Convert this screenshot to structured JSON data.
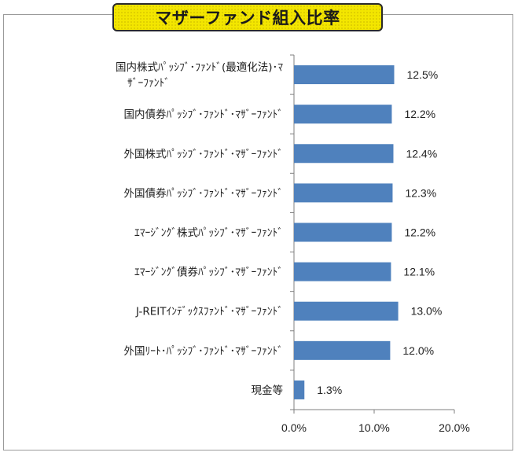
{
  "chart_data": {
    "type": "bar",
    "orientation": "horizontal",
    "title": "マザーファンド組入比率",
    "categories": [
      [
        "国内株式ﾊﾟｯｼﾌﾞ･ﾌｧﾝﾄﾞ(最適化法)･ﾏ",
        "ｻﾞｰﾌｧﾝﾄﾞ"
      ],
      [
        "国内債券ﾊﾟｯｼﾌﾞ･ﾌｧﾝﾄﾞ･ﾏｻﾞｰﾌｧﾝﾄﾞ"
      ],
      [
        "外国株式ﾊﾟｯｼﾌﾞ･ﾌｧﾝﾄﾞ･ﾏｻﾞｰﾌｧﾝﾄﾞ"
      ],
      [
        "外国債券ﾊﾟｯｼﾌﾞ･ﾌｧﾝﾄﾞ･ﾏｻﾞｰﾌｧﾝﾄﾞ"
      ],
      [
        "ｴﾏｰｼﾞﾝｸﾞ株式ﾊﾟｯｼﾌﾞ･ﾏｻﾞｰﾌｧﾝﾄﾞ"
      ],
      [
        "ｴﾏｰｼﾞﾝｸﾞ債券ﾊﾟｯｼﾌﾞ･ﾏｻﾞｰﾌｧﾝﾄﾞ"
      ],
      [
        "J-REITｲﾝﾃﾞｯｸｽﾌｧﾝﾄﾞ･ﾏｻﾞｰﾌｧﾝﾄﾞ"
      ],
      [
        "外国ﾘｰﾄ･ﾊﾟｯｼﾌﾞ･ﾌｧﾝﾄﾞ･ﾏｻﾞｰﾌｧﾝﾄﾞ"
      ],
      [
        "現金等"
      ]
    ],
    "values": [
      12.5,
      12.2,
      12.4,
      12.3,
      12.2,
      12.1,
      13.0,
      12.0,
      1.3
    ],
    "value_labels": [
      "12.5%",
      "12.2%",
      "12.4%",
      "12.3%",
      "12.2%",
      "12.1%",
      "13.0%",
      "12.0%",
      "1.3%"
    ],
    "xlim": [
      0,
      20
    ],
    "xticks": [
      0,
      10,
      20
    ],
    "xtick_labels": [
      "0.0%",
      "10.0%",
      "20.0%"
    ],
    "bar_color": "#4f81bd",
    "grid": false,
    "legend": "none"
  }
}
